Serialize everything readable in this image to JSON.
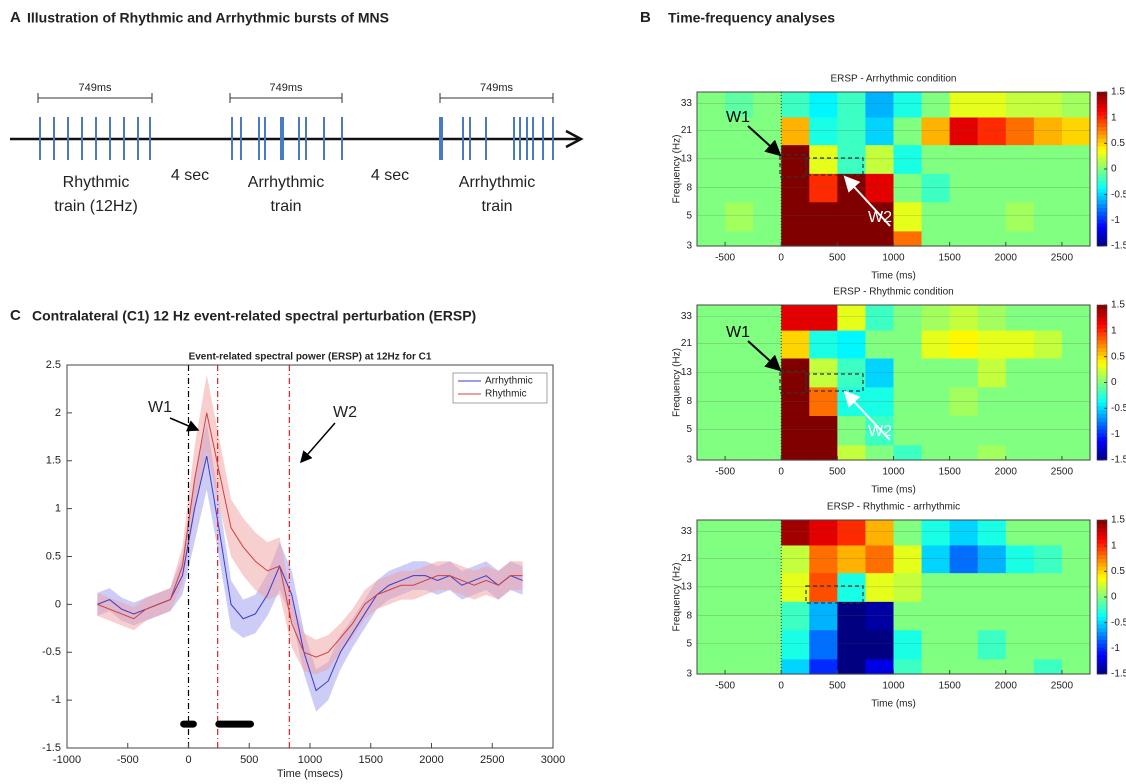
{
  "panel_a": {
    "letter": "A",
    "title": "Illustration of Rhythmic and Arrhythmic bursts of MNS",
    "trains": [
      {
        "duration": "749ms",
        "label": [
          "Rhythmic",
          "train (12Hz)"
        ]
      },
      {
        "duration": "749ms",
        "label": [
          "Arrhythmic",
          "train"
        ]
      },
      {
        "duration": "749ms",
        "label": [
          "Arrhythmic",
          "train"
        ]
      }
    ],
    "gaps": [
      "4 sec",
      "4 sec"
    ]
  },
  "panel_b": {
    "letter": "B",
    "title": "Time-frequency analyses"
  },
  "panel_c": {
    "letter": "C",
    "title": "Contralateral (C1) 12 Hz event-related spectral perturbation (ERSP)"
  },
  "chart_data": [
    {
      "type": "heatmap",
      "title": "ERSP - Arrhythmic condition",
      "xlabel": "Time (ms)",
      "ylabel": "Frequency (Hz)",
      "x": [
        -625,
        -375,
        -125,
        125,
        375,
        625,
        875,
        1125,
        1375,
        1625,
        1875,
        2125,
        2375,
        2625
      ],
      "y": [
        3,
        5,
        8,
        13,
        21,
        33
      ],
      "z": [
        [
          0,
          0,
          0,
          1.5,
          1.5,
          1.5,
          1.5,
          0.8,
          0,
          0,
          0,
          0,
          0,
          0
        ],
        [
          0,
          0.1,
          0,
          1.5,
          1.5,
          1.5,
          1.5,
          0.3,
          0,
          0,
          0,
          0.1,
          0,
          0
        ],
        [
          0,
          0,
          0,
          1.5,
          1.0,
          1.5,
          1.2,
          0,
          -0.2,
          0,
          0,
          0,
          0,
          0
        ],
        [
          0,
          0,
          0,
          1.5,
          0.3,
          -0.2,
          0.2,
          -0.3,
          0,
          0,
          0,
          0,
          0,
          0
        ],
        [
          0,
          0,
          0,
          0.6,
          -0.3,
          -0.2,
          -0.5,
          0,
          0.6,
          1.2,
          1.0,
          0.8,
          0.6,
          0.5
        ],
        [
          0,
          -0.1,
          0,
          -0.2,
          -0.4,
          -0.2,
          -0.6,
          -0.3,
          0,
          0.3,
          0.3,
          0.2,
          0.2,
          0.1
        ]
      ],
      "xlim": [
        -750,
        2750
      ],
      "ylim": [
        3,
        40
      ],
      "ylog": true,
      "zlim": [
        -1.5,
        1.5
      ],
      "xticks": [
        -500,
        0,
        500,
        1000,
        1500,
        2000,
        2500
      ],
      "yticks": [
        3,
        5,
        8,
        13,
        21,
        33
      ],
      "zticks": [
        -1.5,
        -1,
        -0.5,
        0,
        0.5,
        1,
        1.5
      ],
      "annotations": [
        {
          "text": "W1"
        },
        {
          "text": "W2"
        }
      ]
    },
    {
      "type": "heatmap",
      "title": "ERSP - Rhythmic condition",
      "xlabel": "Time (ms)",
      "ylabel": "Frequency (Hz)",
      "x": [
        -625,
        -375,
        -125,
        125,
        375,
        625,
        875,
        1125,
        1375,
        1625,
        1875,
        2125,
        2375,
        2625
      ],
      "y": [
        3,
        5,
        8,
        13,
        21,
        33
      ],
      "z": [
        [
          0,
          0,
          0,
          1.5,
          1.5,
          0.2,
          0,
          -0.2,
          0,
          0,
          0.1,
          0,
          0,
          0
        ],
        [
          0,
          0,
          0,
          1.5,
          1.5,
          0,
          -0.2,
          0,
          0,
          0,
          0,
          0,
          0,
          0
        ],
        [
          0,
          0,
          0,
          1.5,
          0.8,
          -0.3,
          -0.3,
          0,
          0,
          0.1,
          0,
          0,
          0,
          0
        ],
        [
          0,
          0,
          0,
          1.5,
          0.2,
          -0.2,
          -0.5,
          0,
          0,
          0,
          0.2,
          0,
          0,
          0
        ],
        [
          0,
          0,
          0,
          0.5,
          -0.3,
          -0.4,
          0,
          0,
          0.3,
          0.4,
          0.3,
          0.3,
          0.2,
          0
        ],
        [
          0,
          0,
          0,
          1.2,
          1.2,
          0.3,
          -0.2,
          0,
          0.1,
          0.2,
          0.1,
          0,
          0,
          0
        ]
      ],
      "xlim": [
        -750,
        2750
      ],
      "ylim": [
        3,
        40
      ],
      "ylog": true,
      "zlim": [
        -1.5,
        1.5
      ],
      "xticks": [
        -500,
        0,
        500,
        1000,
        1500,
        2000,
        2500
      ],
      "yticks": [
        3,
        5,
        8,
        13,
        21,
        33
      ],
      "zticks": [
        -1.5,
        -1,
        -0.5,
        0,
        0.5,
        1,
        1.5
      ],
      "annotations": [
        {
          "text": "W1"
        },
        {
          "text": "W2"
        }
      ]
    },
    {
      "type": "heatmap",
      "title": "ERSP - Rhythmic - arrhythmic",
      "xlabel": "Time (ms)",
      "ylabel": "Frequency (Hz)",
      "x": [
        -625,
        -375,
        -125,
        125,
        375,
        625,
        875,
        1125,
        1375,
        1625,
        1875,
        2125,
        2375,
        2625
      ],
      "y": [
        3,
        5,
        8,
        13,
        21,
        33
      ],
      "z": [
        [
          0,
          0,
          0,
          -0.5,
          -1.0,
          -1.5,
          -1.2,
          -0.2,
          0,
          0,
          0,
          0,
          -0.2,
          0
        ],
        [
          0,
          0,
          0,
          -0.3,
          -0.8,
          -1.5,
          -1.5,
          -0.3,
          0,
          0,
          -0.2,
          0,
          0,
          0
        ],
        [
          0,
          0,
          0,
          -0.2,
          -0.6,
          -1.5,
          -1.4,
          0,
          0,
          0,
          0,
          0,
          0,
          0
        ],
        [
          0,
          0,
          0,
          0.3,
          0.9,
          -0.3,
          0.3,
          0.2,
          0,
          0,
          0,
          0,
          0,
          0
        ],
        [
          0,
          0,
          0,
          0.2,
          0.8,
          0.6,
          0.8,
          0.3,
          -0.5,
          -0.8,
          -0.6,
          -0.3,
          -0.2,
          0
        ],
        [
          0,
          0,
          0,
          1.4,
          1.2,
          1.0,
          0.6,
          0,
          -0.3,
          -0.5,
          -0.3,
          0,
          0,
          0
        ]
      ],
      "xlim": [
        -750,
        2750
      ],
      "ylim": [
        3,
        40
      ],
      "ylog": true,
      "zlim": [
        -1.5,
        1.5
      ],
      "xticks": [
        -500,
        0,
        500,
        1000,
        1500,
        2000,
        2500
      ],
      "yticks": [
        3,
        5,
        8,
        13,
        21,
        33
      ],
      "zticks": [
        -1.5,
        -1,
        -0.5,
        0,
        0.5,
        1,
        1.5
      ],
      "annotations": []
    },
    {
      "type": "line",
      "title": "Event-related spectral power (ERSP) at 12Hz for C1",
      "xlabel": "Time (msecs)",
      "x": [
        -750,
        -650,
        -550,
        -450,
        -350,
        -250,
        -150,
        -50,
        50,
        150,
        250,
        350,
        450,
        550,
        650,
        750,
        850,
        950,
        1050,
        1150,
        1250,
        1350,
        1450,
        1550,
        1650,
        1750,
        1850,
        1950,
        2050,
        2150,
        2250,
        2350,
        2450,
        2550,
        2650,
        2750
      ],
      "series": [
        {
          "name": "Arrhythmic",
          "color": "#3b3bcc",
          "band_color": "#9a9af0",
          "values": [
            0,
            0.05,
            -0.05,
            -0.1,
            -0.05,
            0,
            0.05,
            0.3,
            1.0,
            1.55,
            0.8,
            0,
            -0.15,
            -0.1,
            0.1,
            0.4,
            0.1,
            -0.5,
            -0.9,
            -0.8,
            -0.5,
            -0.3,
            -0.1,
            0.1,
            0.2,
            0.25,
            0.3,
            0.3,
            0.25,
            0.3,
            0.2,
            0.25,
            0.3,
            0.2,
            0.3,
            0.25
          ],
          "error": [
            0.12,
            0.12,
            0.12,
            0.12,
            0.12,
            0.12,
            0.12,
            0.2,
            0.35,
            0.35,
            0.3,
            0.25,
            0.2,
            0.2,
            0.22,
            0.25,
            0.25,
            0.22,
            0.22,
            0.2,
            0.18,
            0.15,
            0.15,
            0.15,
            0.15,
            0.15,
            0.15,
            0.15,
            0.15,
            0.15,
            0.15,
            0.15,
            0.15,
            0.15,
            0.15,
            0.15
          ]
        },
        {
          "name": "Rhythmic",
          "color": "#d04040",
          "band_color": "#f2a0a0",
          "values": [
            0,
            -0.05,
            -0.1,
            -0.15,
            -0.05,
            0,
            0.05,
            0.4,
            1.3,
            2.0,
            1.4,
            0.8,
            0.6,
            0.45,
            0.35,
            0.4,
            -0.2,
            -0.5,
            -0.55,
            -0.5,
            -0.35,
            -0.2,
            0,
            0.1,
            0.15,
            0.2,
            0.2,
            0.25,
            0.3,
            0.3,
            0.25,
            0.2,
            0.25,
            0.2,
            0.3,
            0.3
          ],
          "error": [
            0.12,
            0.12,
            0.12,
            0.12,
            0.12,
            0.12,
            0.12,
            0.2,
            0.35,
            0.4,
            0.35,
            0.3,
            0.3,
            0.3,
            0.3,
            0.3,
            0.25,
            0.2,
            0.18,
            0.18,
            0.15,
            0.15,
            0.15,
            0.15,
            0.15,
            0.15,
            0.15,
            0.15,
            0.15,
            0.15,
            0.15,
            0.15,
            0.15,
            0.15,
            0.15,
            0.15
          ]
        }
      ],
      "xlim": [
        -1000,
        3000
      ],
      "ylim": [
        -1.5,
        2.5
      ],
      "xticks": [
        -1000,
        -500,
        0,
        500,
        1000,
        1500,
        2000,
        2500,
        3000
      ],
      "yticks": [
        -1.5,
        -1,
        -0.5,
        0,
        0.5,
        1,
        1.5,
        2,
        2.5
      ],
      "legend": "top-right",
      "vlines": [
        {
          "x": 0,
          "color": "#000000"
        },
        {
          "x": 240,
          "color": "#e02020"
        },
        {
          "x": 830,
          "color": "#e02020"
        }
      ],
      "significance": {
        "y": -1.25,
        "ranges": [
          [
            -40,
            40
          ],
          [
            250,
            510
          ]
        ]
      },
      "annotations": [
        {
          "text": "W1"
        },
        {
          "text": "W2"
        }
      ]
    }
  ]
}
